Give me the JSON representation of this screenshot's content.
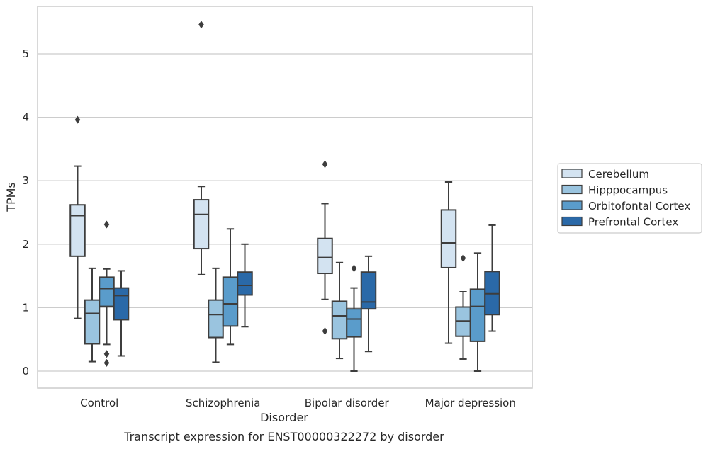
{
  "chart_data": {
    "type": "box",
    "xlabel": "Disorder",
    "ylabel": "TPMs",
    "caption": "Transcript expression for ENST00000322272 by disorder",
    "categories": [
      "Control",
      "Schizophrenia",
      "Bipolar disorder",
      "Major depression"
    ],
    "ylim": [
      -0.27,
      5.75
    ],
    "yticks": [
      0,
      1,
      2,
      3,
      4,
      5
    ],
    "grid": "horizontal",
    "legend_position": "right",
    "series": [
      {
        "name": "Cerebellum",
        "color": "#d3e3f1",
        "boxes": [
          {
            "whislo": 0.83,
            "q1": 1.81,
            "med": 2.45,
            "q3": 2.62,
            "whishi": 3.23,
            "fliers": [
              3.96
            ]
          },
          {
            "whislo": 1.52,
            "q1": 1.93,
            "med": 2.47,
            "q3": 2.7,
            "whishi": 2.91,
            "fliers": [
              5.46
            ]
          },
          {
            "whislo": 1.13,
            "q1": 1.54,
            "med": 1.79,
            "q3": 2.09,
            "whishi": 2.64,
            "fliers": [
              3.26,
              0.63
            ]
          },
          {
            "whislo": 0.44,
            "q1": 1.63,
            "med": 2.02,
            "q3": 2.54,
            "whishi": 2.98,
            "fliers": []
          }
        ]
      },
      {
        "name": "Hipppocampus",
        "color": "#9ac4df",
        "boxes": [
          {
            "whislo": 0.15,
            "q1": 0.43,
            "med": 0.91,
            "q3": 1.12,
            "whishi": 1.62,
            "fliers": []
          },
          {
            "whislo": 0.14,
            "q1": 0.53,
            "med": 0.89,
            "q3": 1.12,
            "whishi": 1.62,
            "fliers": []
          },
          {
            "whislo": 0.2,
            "q1": 0.51,
            "med": 0.87,
            "q3": 1.1,
            "whishi": 1.71,
            "fliers": []
          },
          {
            "whislo": 0.19,
            "q1": 0.55,
            "med": 0.79,
            "q3": 1.01,
            "whishi": 1.25,
            "fliers": [
              1.78
            ]
          }
        ]
      },
      {
        "name": "Orbitofontal Cortex",
        "color": "#5a9ccb",
        "boxes": [
          {
            "whislo": 0.42,
            "q1": 1.02,
            "med": 1.3,
            "q3": 1.48,
            "whishi": 1.61,
            "fliers": [
              2.31,
              0.27,
              0.13
            ]
          },
          {
            "whislo": 0.42,
            "q1": 0.71,
            "med": 1.06,
            "q3": 1.48,
            "whishi": 2.24,
            "fliers": []
          },
          {
            "whislo": 0.0,
            "q1": 0.54,
            "med": 0.82,
            "q3": 0.98,
            "whishi": 1.31,
            "fliers": [
              1.62
            ]
          },
          {
            "whislo": 0.0,
            "q1": 0.47,
            "med": 1.02,
            "q3": 1.29,
            "whishi": 1.86,
            "fliers": []
          }
        ]
      },
      {
        "name": "Prefrontal Cortex",
        "color": "#2a69a8",
        "boxes": [
          {
            "whislo": 0.24,
            "q1": 0.81,
            "med": 1.19,
            "q3": 1.31,
            "whishi": 1.58,
            "fliers": []
          },
          {
            "whislo": 0.7,
            "q1": 1.2,
            "med": 1.35,
            "q3": 1.56,
            "whishi": 2.0,
            "fliers": []
          },
          {
            "whislo": 0.31,
            "q1": 0.98,
            "med": 1.09,
            "q3": 1.56,
            "whishi": 1.81,
            "fliers": []
          },
          {
            "whislo": 0.63,
            "q1": 0.89,
            "med": 1.22,
            "q3": 1.57,
            "whishi": 2.3,
            "fliers": []
          }
        ]
      }
    ]
  }
}
